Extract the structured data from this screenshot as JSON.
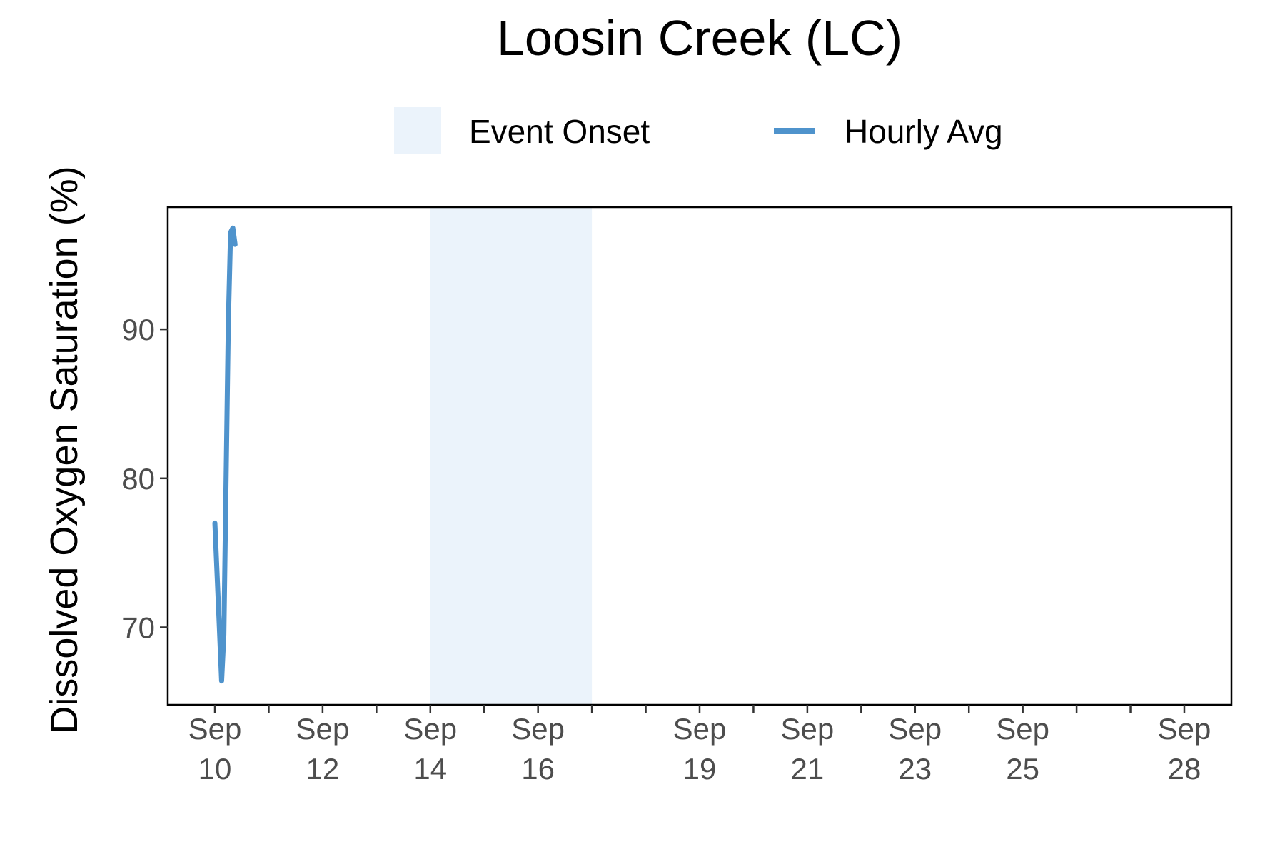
{
  "chart_data": {
    "type": "line",
    "title": "Loosin Creek (LC)",
    "xlabel": "",
    "ylabel": "Dissolved Oxygen Saturation (%)",
    "x_axis": {
      "type": "date",
      "range": [
        "2024-09-09 03:00",
        "2024-09-28 21:00"
      ],
      "ticks": [
        {
          "date": "2024-09-10",
          "label": [
            "Sep",
            "10"
          ]
        },
        {
          "date": "2024-09-12",
          "label": [
            "Sep",
            "12"
          ]
        },
        {
          "date": "2024-09-14",
          "label": [
            "Sep",
            "14"
          ]
        },
        {
          "date": "2024-09-16",
          "label": [
            "Sep",
            "16"
          ]
        },
        {
          "date": "2024-09-19",
          "label": [
            "Sep",
            "19"
          ]
        },
        {
          "date": "2024-09-21",
          "label": [
            "Sep",
            "21"
          ]
        },
        {
          "date": "2024-09-23",
          "label": [
            "Sep",
            "23"
          ]
        },
        {
          "date": "2024-09-25",
          "label": [
            "Sep",
            "25"
          ]
        },
        {
          "date": "2024-09-28",
          "label": [
            "Sep",
            "28"
          ]
        }
      ],
      "unlabeled_ticks": [
        "2024-09-11",
        "2024-09-13",
        "2024-09-15",
        "2024-09-17",
        "2024-09-18",
        "2024-09-20",
        "2024-09-22",
        "2024-09-24",
        "2024-09-26",
        "2024-09-27"
      ]
    },
    "y_axis": {
      "range": [
        64.8,
        98.2
      ],
      "ticks": [
        70,
        80,
        90
      ]
    },
    "grid": false,
    "legend": {
      "placement": "top",
      "entries": [
        {
          "label": "Event Onset",
          "kind": "shaded-area",
          "color": "#ebf3fb"
        },
        {
          "label": "Hourly Avg",
          "kind": "line",
          "color": "#4f93cc"
        }
      ]
    },
    "shaded_regions": [
      {
        "name": "Event Onset",
        "start": "2024-09-14",
        "end": "2024-09-17"
      }
    ],
    "series": [
      {
        "name": "Hourly Avg",
        "color": "#4f93cc",
        "points": [
          {
            "x": "2024-09-10 00:00",
            "y": 77.0
          },
          {
            "x": "2024-09-10 01:00",
            "y": 73.5
          },
          {
            "x": "2024-09-10 02:00",
            "y": 70.0
          },
          {
            "x": "2024-09-10 03:00",
            "y": 66.4
          },
          {
            "x": "2024-09-10 04:00",
            "y": 69.5
          },
          {
            "x": "2024-09-10 05:00",
            "y": 80.0
          },
          {
            "x": "2024-09-10 06:00",
            "y": 90.5
          },
          {
            "x": "2024-09-10 07:00",
            "y": 96.5
          },
          {
            "x": "2024-09-10 08:00",
            "y": 96.8
          },
          {
            "x": "2024-09-10 09:00",
            "y": 95.7
          }
        ]
      }
    ]
  }
}
